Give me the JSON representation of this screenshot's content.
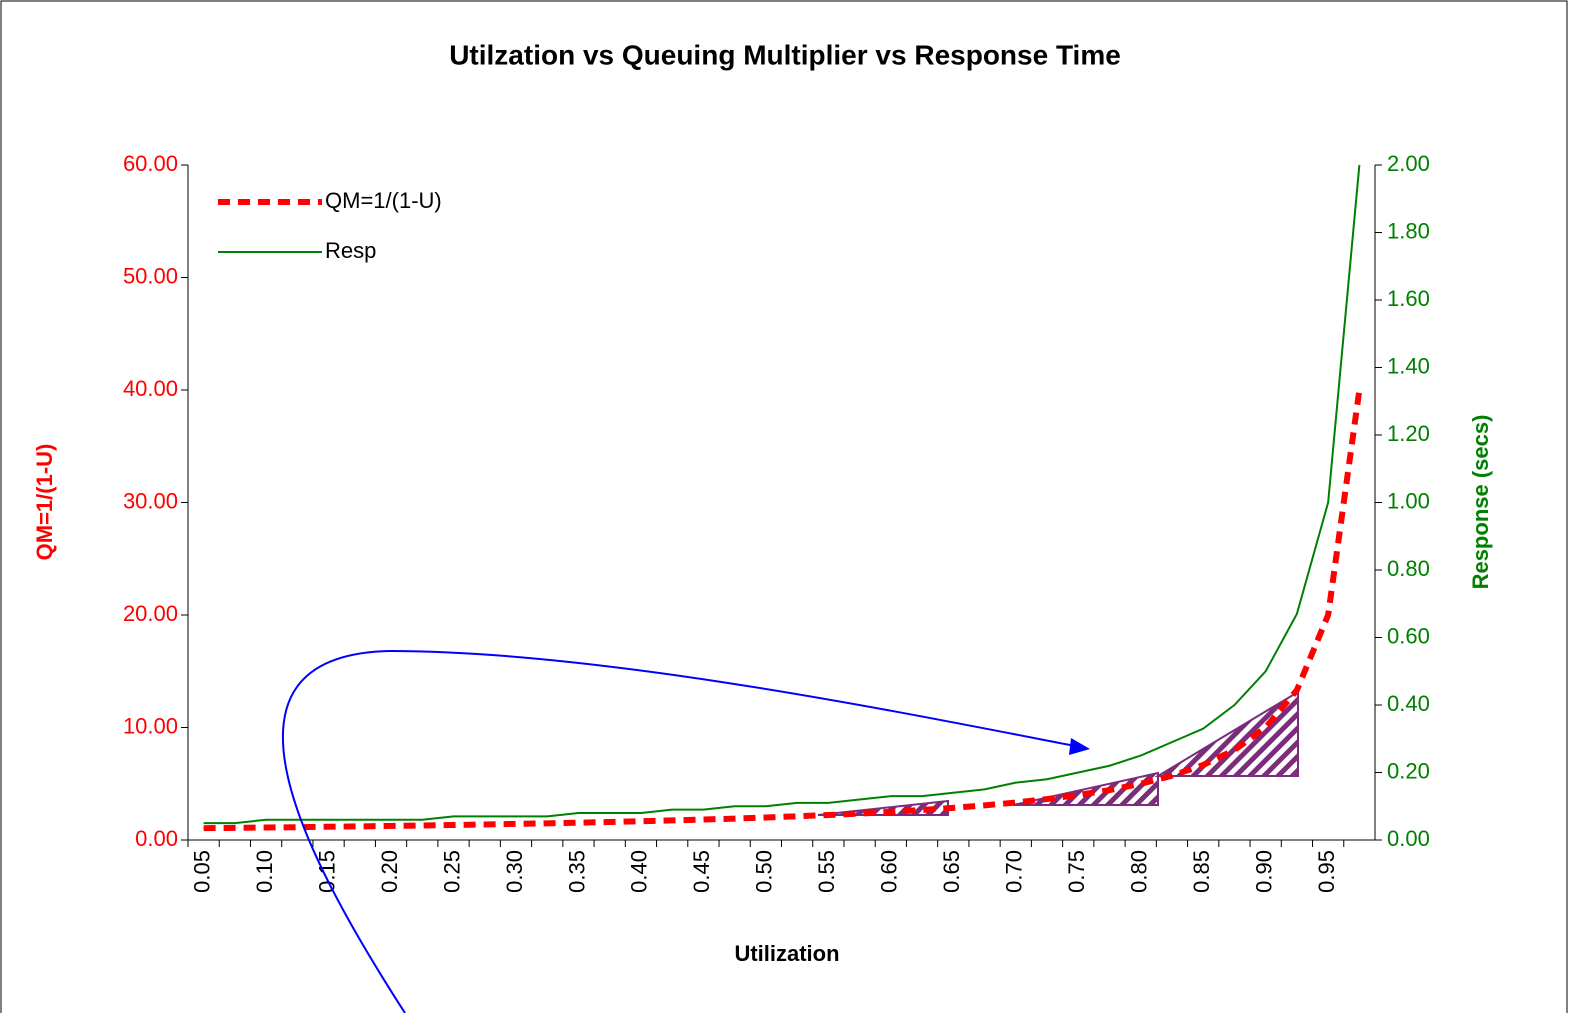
{
  "chart_data": {
    "type": "line",
    "title": "Utilzation vs Queuing Multiplier vs Response Time",
    "xlabel": "Utilization",
    "ylabel": "QM=1/(1-U)",
    "y2label": "Response (secs)",
    "categories": [
      "0.05",
      null,
      "0.10",
      null,
      "0.15",
      null,
      "0.20",
      null,
      "0.25",
      null,
      "0.30",
      null,
      "0.35",
      null,
      "0.40",
      null,
      "0.45",
      null,
      "0.50",
      null,
      "0.55",
      null,
      "0.60",
      null,
      "0.65",
      null,
      "0.70",
      null,
      "0.75",
      null,
      "0.80",
      null,
      "0.85",
      null,
      "0.90",
      null,
      "0.95",
      null
    ],
    "series": [
      {
        "name": "QM=1/(1-U)",
        "color": "#ff0000",
        "values": [
          1.05,
          1.08,
          1.11,
          1.14,
          1.18,
          1.21,
          1.25,
          1.29,
          1.33,
          1.38,
          1.43,
          1.48,
          1.54,
          1.6,
          1.67,
          1.74,
          1.82,
          1.9,
          2.0,
          2.11,
          2.22,
          2.35,
          2.5,
          2.67,
          2.86,
          3.08,
          3.33,
          3.64,
          4.0,
          4.44,
          5.0,
          5.71,
          6.67,
          8.0,
          10.0,
          13.33,
          20.0,
          40.0
        ]
      },
      {
        "name": "Resp",
        "color": "#008000",
        "axis": "y2",
        "values": [
          0.05,
          0.05,
          0.06,
          0.06,
          0.06,
          0.06,
          0.06,
          0.06,
          0.07,
          0.07,
          0.07,
          0.07,
          0.08,
          0.08,
          0.08,
          0.09,
          0.09,
          0.1,
          0.1,
          0.11,
          0.11,
          0.12,
          0.13,
          0.13,
          0.14,
          0.15,
          0.17,
          0.18,
          0.2,
          0.22,
          0.25,
          0.29,
          0.33,
          0.4,
          0.5,
          0.67,
          1.0,
          2.0
        ]
      }
    ],
    "ylim": [
      0,
      60
    ],
    "yticks": [
      {
        "value": 0,
        "label": "0.00"
      },
      {
        "value": 10,
        "label": "10.00"
      },
      {
        "value": 20,
        "label": "20.00"
      },
      {
        "value": 30,
        "label": "30.00"
      },
      {
        "value": 40,
        "label": "40.00"
      },
      {
        "value": 50,
        "label": "50.00"
      },
      {
        "value": 60,
        "label": "60.00"
      }
    ],
    "y2lim": [
      0,
      2
    ],
    "y2ticks": [
      {
        "value": 0,
        "label": "0.00"
      },
      {
        "value": 0.2,
        "label": "0.20"
      },
      {
        "value": 0.4,
        "label": "0.40"
      },
      {
        "value": 0.6,
        "label": "0.60"
      },
      {
        "value": 0.8,
        "label": "0.80"
      },
      {
        "value": 1,
        "label": "1.00"
      },
      {
        "value": 1.2,
        "label": "1.20"
      },
      {
        "value": 1.4,
        "label": "1.40"
      },
      {
        "value": 1.6,
        "label": "1.60"
      },
      {
        "value": 1.8,
        "label": "1.80"
      },
      {
        "value": 2,
        "label": "2.00"
      }
    ],
    "legend": "top-left",
    "grid": false
  }
}
